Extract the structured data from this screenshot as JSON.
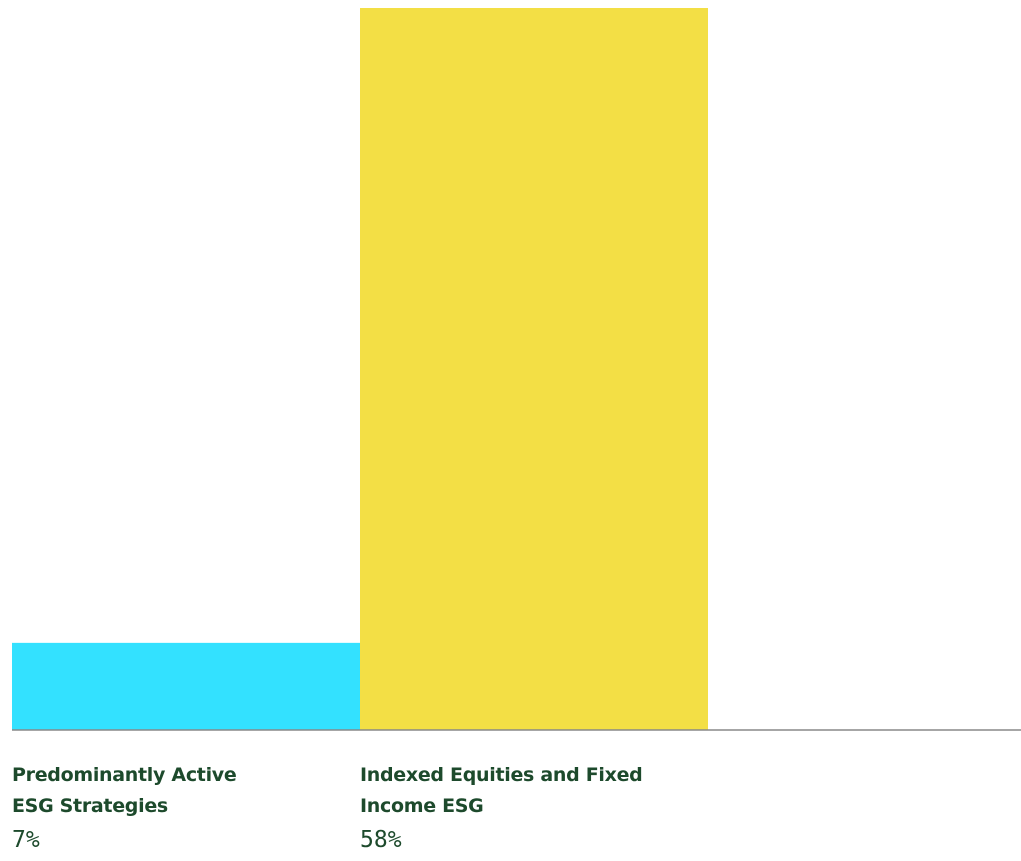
{
  "chart_data": {
    "type": "bar",
    "categories": [
      "Predominantly Active\nESG Strategies",
      "Indexed Equities and Fixed\nIncome ESG"
    ],
    "values": [
      7,
      58
    ],
    "value_labels": [
      "7%",
      "58%"
    ],
    "colors": [
      "#33e1ff",
      "#f3df45"
    ],
    "axis_color": "#888888",
    "label_color": "#1d4a2c",
    "ylim": [
      0,
      58
    ],
    "grid": false,
    "legend": "none"
  }
}
